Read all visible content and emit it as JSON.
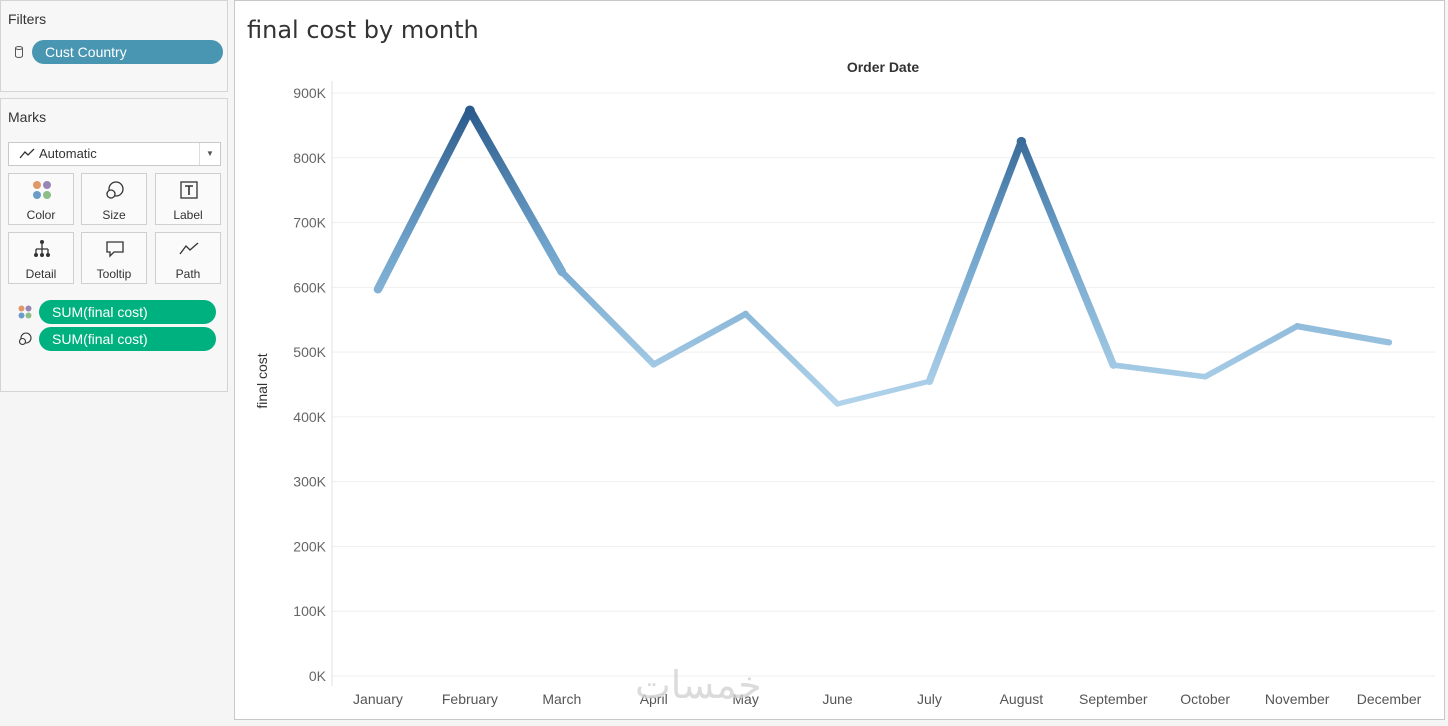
{
  "filters": {
    "title": "Filters",
    "pill": "Cust Country"
  },
  "marks": {
    "title": "Marks",
    "mark_type": "Automatic",
    "buttons": [
      {
        "label": "Color",
        "icon": "color-dots-icon"
      },
      {
        "label": "Size",
        "icon": "size-circles-icon"
      },
      {
        "label": "Label",
        "icon": "label-t-icon"
      },
      {
        "label": "Detail",
        "icon": "detail-tree-icon"
      },
      {
        "label": "Tooltip",
        "icon": "tooltip-bubble-icon"
      },
      {
        "label": "Path",
        "icon": "path-line-icon"
      }
    ],
    "fields": [
      {
        "label": "SUM(final cost)",
        "icon": "color-dots-icon"
      },
      {
        "label": "SUM(final cost)",
        "icon": "size-circles-icon"
      }
    ]
  },
  "sheet": {
    "title": "final cost by month"
  },
  "watermark": "خمسات",
  "colors": {
    "filter_pill": "#4996b2",
    "measure_pill": "#00b180",
    "line_dark": "#2b5b8c",
    "line_light": "#b3d5ec"
  },
  "chart_data": {
    "type": "line",
    "title": "",
    "column_header": "Order Date",
    "xlabel": "",
    "ylabel": "final cost",
    "categories": [
      "January",
      "February",
      "March",
      "April",
      "May",
      "June",
      "July",
      "August",
      "September",
      "October",
      "November",
      "December"
    ],
    "values": [
      597000,
      873000,
      624000,
      481000,
      559000,
      420000,
      455000,
      825000,
      480000,
      462000,
      540000,
      515000
    ],
    "y_ticks": [
      "0K",
      "100K",
      "200K",
      "300K",
      "400K",
      "500K",
      "600K",
      "700K",
      "800K",
      "900K"
    ],
    "ylim": [
      0,
      900000
    ],
    "encoding": "color and size by SUM(final cost)",
    "grid": true
  }
}
